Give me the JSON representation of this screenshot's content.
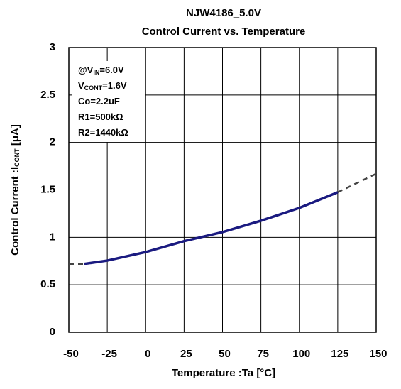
{
  "chart_data": {
    "type": "line",
    "title": [
      "NJW4186_5.0V",
      "Control Current vs. Temperature"
    ],
    "xlabel": "Temperature :Ta [°C]",
    "ylabel": [
      {
        "text": "Control Current :I"
      },
      {
        "text": "CONT",
        "sub": true
      },
      {
        "text": " [μA]"
      }
    ],
    "annotations": [
      [
        {
          "text": "@V"
        },
        {
          "text": "IN",
          "sub": true
        },
        {
          "text": "=6.0V"
        }
      ],
      [
        {
          "text": "V"
        },
        {
          "text": "CONT",
          "sub": true
        },
        {
          "text": "=1.6V"
        }
      ],
      [
        {
          "text": "Co=2.2uF"
        }
      ],
      [
        {
          "text": "R1=500kΩ"
        }
      ],
      [
        {
          "text": "R2=1440kΩ"
        }
      ]
    ],
    "x": [
      -50,
      -40,
      -25,
      0,
      25,
      50,
      75,
      100,
      125,
      150
    ],
    "series": [
      {
        "color": "#1a1a80",
        "style": "solid",
        "values": [
          null,
          0.72,
          0.755,
          0.845,
          0.96,
          1.055,
          1.175,
          1.31,
          1.475,
          null
        ]
      },
      {
        "color": "#444444",
        "style": "dashed",
        "values": [
          0.72,
          0.72,
          null,
          null,
          null,
          null,
          null,
          null,
          1.475,
          1.67
        ]
      }
    ],
    "xlim": [
      -50,
      150
    ],
    "xticks": [
      -50,
      -25,
      0,
      25,
      50,
      75,
      100,
      125,
      150
    ],
    "ylim": [
      0,
      3
    ],
    "yticks": [
      0,
      0.5,
      1,
      1.5,
      2,
      2.5,
      3
    ],
    "grid": true
  }
}
